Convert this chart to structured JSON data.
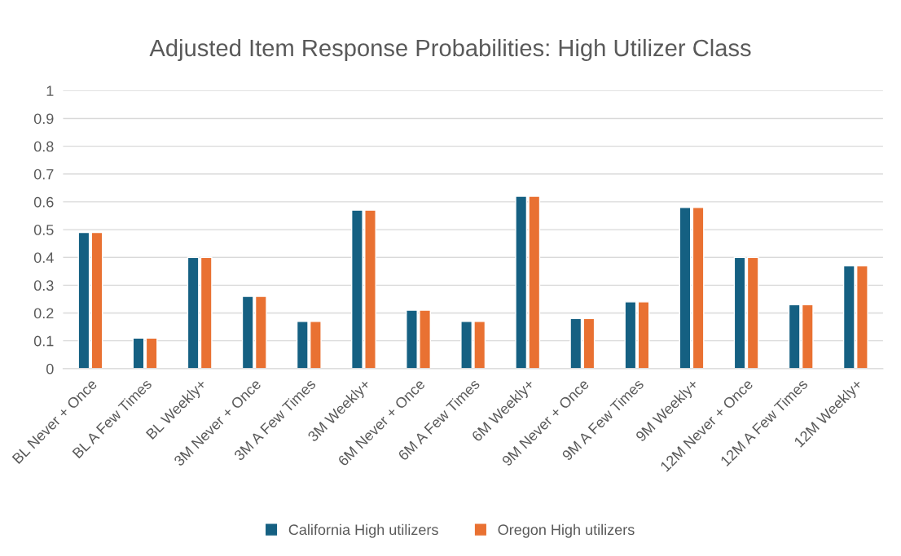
{
  "chart_data": {
    "type": "bar",
    "title": "Adjusted Item Response Probabilities: High Utilizer Class",
    "categories": [
      "BL Never + Once",
      "BL A Few Times",
      "BL Weekly+",
      "3M Never + Once",
      "3M A Few Times",
      "3M Weekly+",
      "6M Never + Once",
      "6M A Few Times",
      "6M Weekly+",
      "9M Never + Once",
      "9M A Few Times",
      "9M Weekly+",
      "12M Never + Once",
      "12M A Few Times",
      "12M Weekly+"
    ],
    "series": [
      {
        "name": "California High utilizers",
        "color": "#156082",
        "values": [
          0.49,
          0.11,
          0.4,
          0.26,
          0.17,
          0.57,
          0.21,
          0.17,
          0.62,
          0.18,
          0.24,
          0.58,
          0.4,
          0.23,
          0.37
        ]
      },
      {
        "name": "Oregon High utilizers",
        "color": "#e97132",
        "values": [
          0.49,
          0.11,
          0.4,
          0.26,
          0.17,
          0.57,
          0.21,
          0.17,
          0.62,
          0.18,
          0.24,
          0.58,
          0.4,
          0.23,
          0.37
        ]
      }
    ],
    "ylim": [
      0,
      1
    ],
    "yticks": [
      0,
      {
        "value": 0.1,
        "label": "0.1"
      },
      {
        "value": 0.2,
        "label": "0.2"
      },
      {
        "value": 0.3,
        "label": "0.3"
      },
      {
        "value": 0.4,
        "label": "0.4"
      },
      {
        "value": 0.5,
        "label": "0.5"
      },
      {
        "value": 0.6,
        "label": "0.6"
      },
      {
        "value": 0.7,
        "label": "0.7"
      },
      {
        "value": 0.8,
        "label": "0.8"
      },
      {
        "value": 0.9,
        "label": "0.9"
      },
      1
    ],
    "grid": "y",
    "legend": "bottom"
  }
}
